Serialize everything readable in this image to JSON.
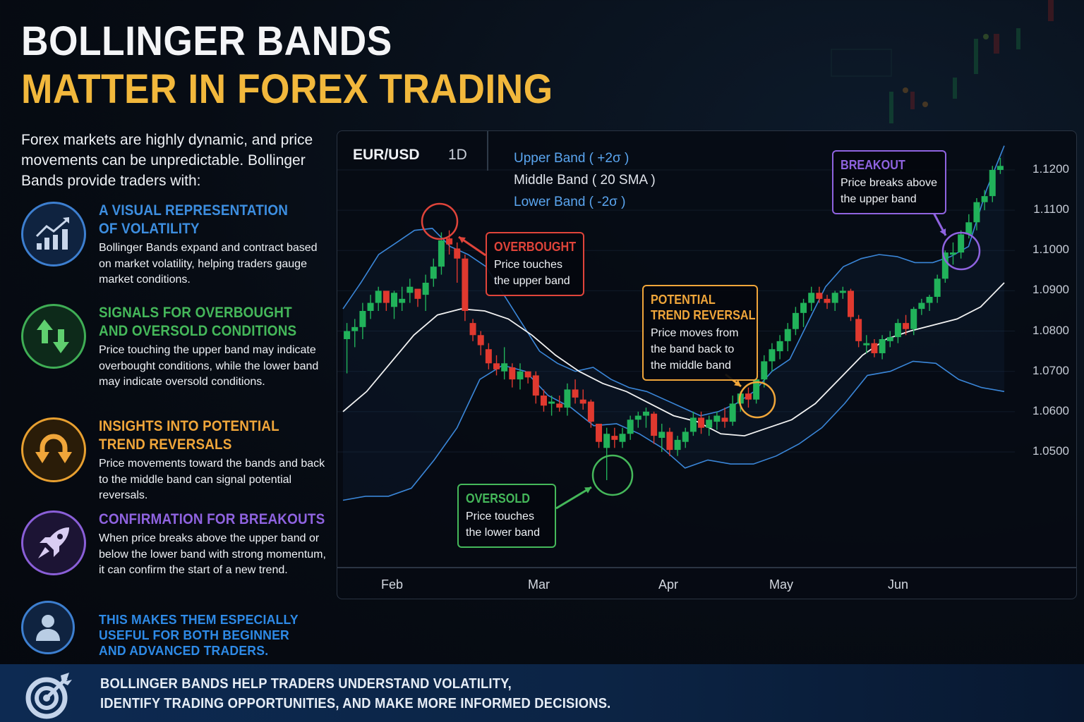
{
  "title": {
    "line1": "BOLLINGER BANDS",
    "line2": "MATTER IN FOREX TRADING"
  },
  "intro": "Forex markets are highly dynamic, and price movements can be unpredictable. Bollinger Bands provide traders with:",
  "features": [
    {
      "icon": "chart-growth-icon",
      "heading": [
        "A VISUAL REPRESENTATION",
        "OF VOLATILITY"
      ],
      "body": "Bollinger Bands expand and contract based on market volatility, helping traders gauge market conditions.",
      "color": "#3d8ee0"
    },
    {
      "icon": "up-down-arrows-icon",
      "heading": [
        "SIGNALS FOR OVERBOUGHT",
        "AND OVERSOLD CONDITIONS"
      ],
      "body": "Price touching the upper band may indicate overbought conditions, while the lower band may indicate oversold conditions.",
      "color": "#45b85a"
    },
    {
      "icon": "u-turn-arrow-icon",
      "heading": [
        "INSIGHTS INTO POTENTIAL",
        "TREND REVERSALS"
      ],
      "body": "Price movements toward the bands and back to the middle band can signal potential reversals.",
      "color": "#f0a63a"
    },
    {
      "icon": "rocket-icon",
      "heading": [
        "CONFIRMATION FOR BREAKOUTS"
      ],
      "body": "When price breaks above the upper band or below the lower band with strong momentum, it can confirm the start of a new trend.",
      "color": "#8f63e0"
    },
    {
      "icon": "user-icon",
      "heading": [
        "THIS MAKES THEM ESPECIALLY",
        "USEFUL FOR BOTH BEGINNER",
        "AND ADVANCED TRADERS."
      ],
      "body": "",
      "color": "#2e8ae6"
    }
  ],
  "footer": {
    "icon": "target-arrow-icon",
    "line1": "BOLLINGER BANDS HELP TRADERS UNDERSTAND VOLATILITY,",
    "line2": "IDENTIFY TRADING OPPORTUNITIES, AND MAKE MORE INFORMED DECISIONS."
  },
  "chart_header": {
    "symbol": "EUR/USD",
    "timeframe": "1D",
    "legend": {
      "upper": "Upper Band ( +2σ )",
      "middle": "Middle Band ( 20 SMA )",
      "lower": "Lower Band ( -2σ )"
    }
  },
  "callouts": {
    "overbought": {
      "title": "OVERBOUGHT",
      "body": [
        "Price touches",
        "the upper band"
      ],
      "color": "#e0443a"
    },
    "oversold": {
      "title": "OVERSOLD",
      "body": [
        "Price touches",
        "the lower band"
      ],
      "color": "#45b85a"
    },
    "reversal": {
      "title": [
        "POTENTIAL",
        "TREND REVERSAL"
      ],
      "body": [
        "Price moves from",
        "the band back to",
        "the middle band"
      ],
      "color": "#f0a63a"
    },
    "breakout": {
      "title": "BREAKOUT",
      "body": [
        "Price breaks above",
        "the upper band"
      ],
      "color": "#8f63e0"
    }
  },
  "chart_data": {
    "type": "candlestick",
    "title": "EUR/USD 1D",
    "xlabel": "",
    "ylabel": "",
    "x_ticks": [
      "Feb",
      "Mar",
      "Apr",
      "May",
      "Jun"
    ],
    "y_ticks": [
      1.12,
      1.11,
      1.1,
      1.09,
      1.08,
      1.07,
      1.06,
      1.05
    ],
    "ylim": [
      1.0225,
      1.1285
    ],
    "legend": [
      "Upper Band ( +2σ )",
      "Middle Band ( 20 SMA )",
      "Lower Band ( -2σ )"
    ],
    "colors": {
      "up": "#21b25a",
      "down": "#e0392f",
      "upper_band": "#3a86d8",
      "middle_band": "#f2f2f2",
      "lower_band": "#3a86d8"
    },
    "candles": [
      [
        1.078,
        1.082,
        1.0695,
        1.08
      ],
      [
        1.08,
        1.083,
        1.076,
        1.081
      ],
      [
        1.081,
        1.087,
        1.078,
        1.085
      ],
      [
        1.085,
        1.089,
        1.083,
        1.087
      ],
      [
        1.087,
        1.091,
        1.085,
        1.09
      ],
      [
        1.09,
        1.088,
        1.085,
        1.087
      ],
      [
        1.086,
        1.09,
        1.083,
        1.0895
      ],
      [
        1.087,
        1.091,
        1.085,
        1.088
      ],
      [
        1.0895,
        1.093,
        1.087,
        1.091
      ],
      [
        1.0905,
        1.089,
        1.086,
        1.088
      ],
      [
        1.089,
        1.094,
        1.085,
        1.092
      ],
      [
        1.093,
        1.098,
        1.091,
        1.096
      ],
      [
        1.096,
        1.1045,
        1.094,
        1.1025
      ],
      [
        1.103,
        1.105,
        1.099,
        1.1015
      ],
      [
        1.1005,
        1.102,
        1.092,
        1.098
      ],
      [
        1.098,
        1.099,
        1.0825,
        1.085
      ],
      [
        1.082,
        1.083,
        1.0775,
        1.079
      ],
      [
        1.079,
        1.08,
        1.074,
        1.0765
      ],
      [
        1.0755,
        1.077,
        1.0705,
        1.072
      ],
      [
        1.072,
        1.074,
        1.069,
        1.0705
      ],
      [
        1.07,
        1.076,
        1.068,
        1.072
      ],
      [
        1.071,
        1.072,
        1.066,
        1.068
      ],
      [
        1.068,
        1.072,
        1.0655,
        1.07
      ],
      [
        1.07,
        1.07,
        1.067,
        1.0685
      ],
      [
        1.069,
        1.07,
        1.062,
        1.064
      ],
      [
        1.064,
        1.0655,
        1.06,
        1.0615
      ],
      [
        1.062,
        1.064,
        1.059,
        1.0625
      ],
      [
        1.062,
        1.064,
        1.06,
        1.061
      ],
      [
        1.061,
        1.067,
        1.059,
        1.0655
      ],
      [
        1.0655,
        1.068,
        1.062,
        1.0635
      ],
      [
        1.063,
        1.0655,
        1.0605,
        1.062
      ],
      [
        1.0625,
        1.063,
        1.056,
        1.0575
      ],
      [
        1.057,
        1.057,
        1.051,
        1.0525
      ],
      [
        1.051,
        1.056,
        1.043,
        1.0545
      ],
      [
        1.054,
        1.056,
        1.051,
        1.053
      ],
      [
        1.0525,
        1.056,
        1.051,
        1.0545
      ],
      [
        1.0545,
        1.059,
        1.053,
        1.058
      ],
      [
        1.058,
        1.06,
        1.056,
        1.059
      ],
      [
        1.059,
        1.061,
        1.056,
        1.06
      ],
      [
        1.0595,
        1.06,
        1.052,
        1.054
      ],
      [
        1.0535,
        1.057,
        1.05,
        1.055
      ],
      [
        1.055,
        1.056,
        1.049,
        1.0505
      ],
      [
        1.0505,
        1.054,
        1.049,
        1.053
      ],
      [
        1.0525,
        1.056,
        1.051,
        1.055
      ],
      [
        1.055,
        1.06,
        1.054,
        1.0585
      ],
      [
        1.0585,
        1.06,
        1.0545,
        1.056
      ],
      [
        1.056,
        1.059,
        1.054,
        1.058
      ],
      [
        1.0575,
        1.06,
        1.0555,
        1.059
      ],
      [
        1.0585,
        1.061,
        1.056,
        1.0575
      ],
      [
        1.0575,
        1.064,
        1.0565,
        1.062
      ],
      [
        1.062,
        1.065,
        1.06,
        1.0645
      ],
      [
        1.0645,
        1.066,
        1.061,
        1.063
      ],
      [
        1.063,
        1.069,
        1.062,
        1.068
      ],
      [
        1.068,
        1.074,
        1.066,
        1.0725
      ],
      [
        1.0725,
        1.077,
        1.07,
        1.0755
      ],
      [
        1.075,
        1.079,
        1.073,
        1.0775
      ],
      [
        1.0775,
        1.082,
        1.075,
        1.0805
      ],
      [
        1.0805,
        1.086,
        1.079,
        1.0845
      ],
      [
        1.0845,
        1.088,
        1.081,
        1.087
      ],
      [
        1.087,
        1.091,
        1.085,
        1.0895
      ],
      [
        1.0895,
        1.091,
        1.087,
        1.088
      ],
      [
        1.088,
        1.089,
        1.0855,
        1.087
      ],
      [
        1.087,
        1.09,
        1.085,
        1.0895
      ],
      [
        1.0895,
        1.091,
        1.088,
        1.09
      ],
      [
        1.09,
        1.0905,
        1.0825,
        1.0835
      ],
      [
        1.083,
        1.084,
        1.076,
        1.0775
      ],
      [
        1.0765,
        1.079,
        1.0745,
        1.077
      ],
      [
        1.077,
        1.078,
        1.0735,
        1.0745
      ],
      [
        1.0745,
        1.079,
        1.073,
        1.078
      ],
      [
        1.0775,
        1.08,
        1.076,
        1.0785
      ],
      [
        1.0785,
        1.083,
        1.077,
        1.082
      ],
      [
        1.082,
        1.084,
        1.079,
        1.0805
      ],
      [
        1.0805,
        1.086,
        1.079,
        1.0855
      ],
      [
        1.0855,
        1.088,
        1.084,
        1.087
      ],
      [
        1.087,
        1.089,
        1.085,
        1.0885
      ],
      [
        1.0885,
        1.094,
        1.087,
        1.093
      ],
      [
        1.093,
        1.1,
        1.092,
        1.0995
      ],
      [
        1.0995,
        1.102,
        1.0965,
        1.0995
      ],
      [
        1.0995,
        1.105,
        1.098,
        1.104
      ],
      [
        1.104,
        1.109,
        1.103,
        1.107
      ],
      [
        1.107,
        1.113,
        1.105,
        1.112
      ],
      [
        1.112,
        1.115,
        1.11,
        1.1135
      ],
      [
        1.1135,
        1.121,
        1.112,
        1.12
      ],
      [
        1.12,
        1.123,
        1.119,
        1.121
      ]
    ],
    "upper_band": [
      1.0855,
      1.092,
      1.099,
      1.102,
      1.105,
      1.1055,
      1.101,
      1.099,
      1.096,
      1.089,
      1.082,
      1.075,
      1.072,
      1.07,
      1.071,
      1.068,
      1.066,
      1.065,
      1.063,
      1.061,
      1.059,
      1.06,
      1.062,
      1.065,
      1.07,
      1.073,
      1.082,
      1.091,
      1.096,
      1.098,
      1.099,
      1.0985,
      1.097,
      1.097,
      1.0985,
      1.101,
      1.115,
      1.126
    ],
    "middle_band": [
      1.06,
      1.065,
      1.072,
      1.079,
      1.084,
      1.0855,
      1.085,
      1.083,
      1.079,
      1.074,
      1.07,
      1.067,
      1.065,
      1.062,
      1.059,
      1.0575,
      1.0545,
      1.054,
      1.056,
      1.058,
      1.062,
      1.068,
      1.074,
      1.078,
      1.08,
      1.0815,
      1.083,
      1.086,
      1.092
    ],
    "lower_band": [
      1.038,
      1.039,
      1.039,
      1.041,
      1.048,
      1.056,
      1.068,
      1.0715,
      1.07,
      1.064,
      1.061,
      1.0565,
      1.057,
      1.0545,
      1.051,
      1.046,
      1.048,
      1.047,
      1.047,
      1.049,
      1.052,
      1.056,
      1.062,
      1.069,
      1.07,
      1.0725,
      1.072,
      1.068,
      1.066,
      1.065
    ]
  }
}
